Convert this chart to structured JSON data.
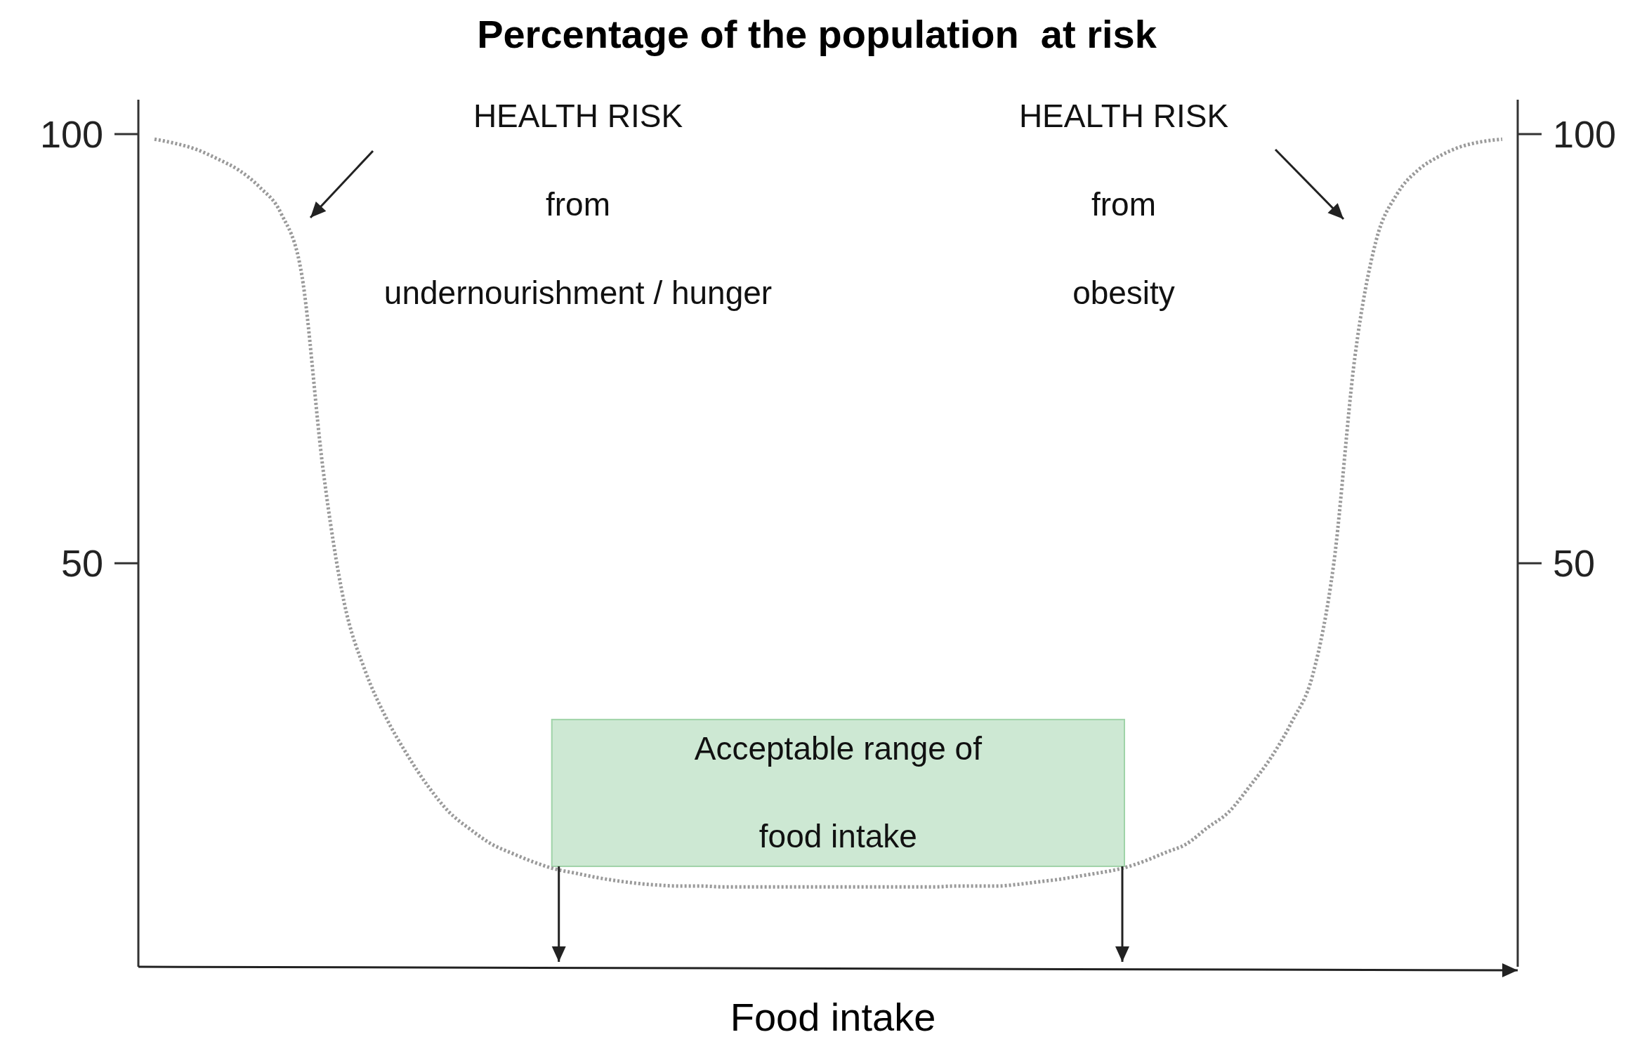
{
  "chart_data": {
    "type": "line",
    "title": "Percentage of the population  at risk",
    "xlabel": "Food intake",
    "categories": [
      null,
      null,
      null,
      null,
      null,
      null,
      null,
      null,
      null,
      null,
      null,
      null,
      null,
      null,
      null,
      null,
      null,
      null,
      null,
      null,
      null,
      null,
      null,
      null,
      null,
      null,
      null,
      null,
      null,
      null,
      null,
      null,
      null,
      null,
      null,
      null,
      null,
      null,
      null,
      null,
      null,
      null,
      null,
      null,
      null,
      null,
      null,
      null,
      null,
      null,
      null,
      null,
      null,
      null,
      null,
      null,
      null,
      null,
      null,
      null,
      null,
      null,
      null,
      null,
      null
    ],
    "series": [
      {
        "color": "#9a9a9a",
        "values": [
          99.4,
          98.9,
          98.2,
          97.1,
          95.8,
          93.8,
          90.8,
          83.5,
          61,
          45.5,
          37.5,
          32,
          27.7,
          24,
          21,
          19,
          17.3,
          16.2,
          15.2,
          14.4,
          13.9,
          13.4,
          13,
          12.7,
          12.5,
          12.4,
          12.4,
          12.3,
          12.3,
          12.3,
          12.3,
          12.3,
          12.3,
          12.3,
          12.3,
          12.3,
          12.3,
          12.3,
          12.4,
          12.4,
          12.4,
          12.6,
          12.9,
          13.2,
          13.6,
          14,
          14.5,
          15.3,
          16.3,
          17.3,
          19.2,
          21,
          24,
          27.3,
          31.5,
          37,
          50,
          74,
          87.5,
          93,
          95.8,
          97.4,
          98.5,
          99.1,
          99.4
        ]
      }
    ],
    "ylim": [
      3,
      104
    ],
    "yticks": [
      50,
      100
    ],
    "y2lim": [
      3,
      104
    ],
    "y2ticks": [
      50,
      100
    ],
    "tick_labels": "y",
    "line_style": "dotted",
    "marker": "none",
    "annotations": [
      "HEALTH RISK\nfrom\nundernourishment / hunger",
      "HEALTH RISK\nfrom\nobesity",
      "Acceptable range of\nfood intake"
    ]
  }
}
